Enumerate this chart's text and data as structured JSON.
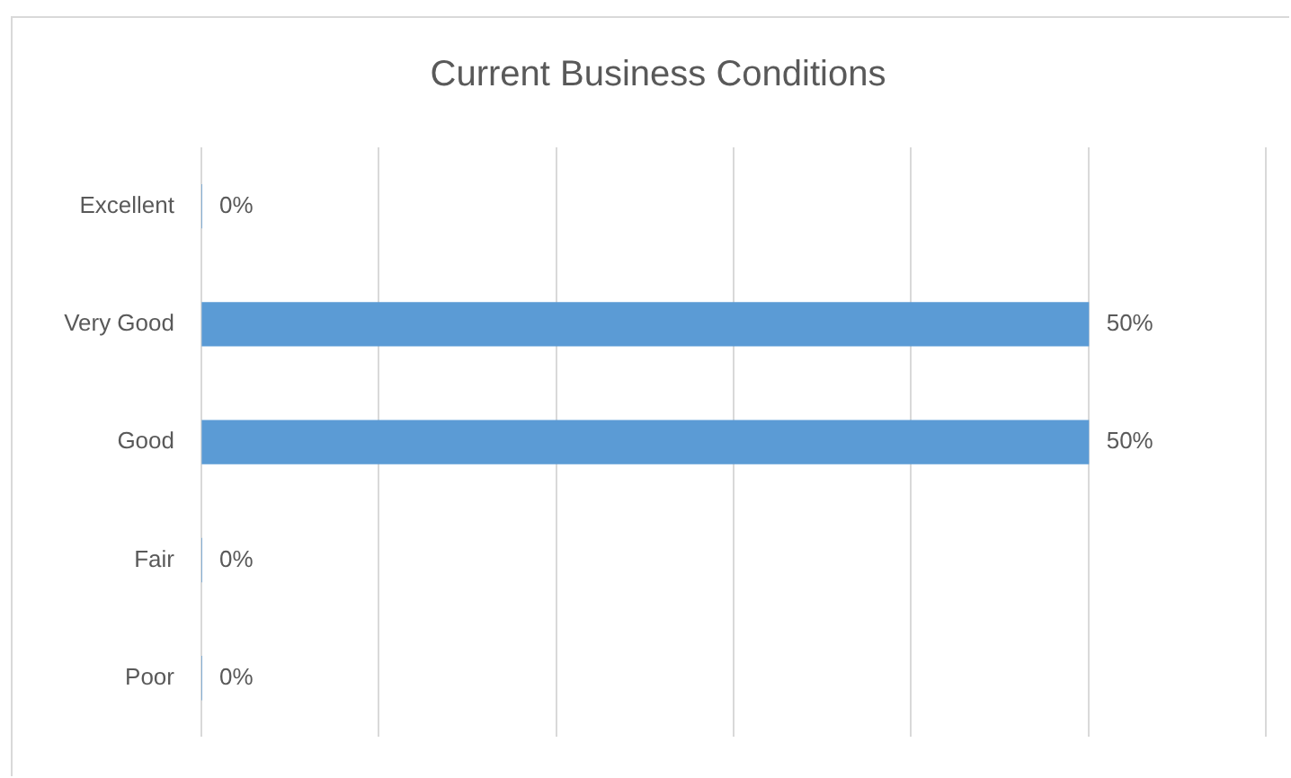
{
  "chart_data": {
    "type": "bar",
    "title": "Current Business Conditions",
    "orientation": "horizontal",
    "categories": [
      "Excellent",
      "Very Good",
      "Good",
      "Fair",
      "Poor"
    ],
    "values": [
      0,
      50,
      50,
      0,
      0
    ],
    "color": "#5b9bd5",
    "value_labels": [
      "0%",
      "50%",
      "50%",
      "0%",
      "0%"
    ],
    "xlim": [
      0,
      60
    ],
    "xticks": [
      {
        "value": 0,
        "label": null
      },
      {
        "value": 10,
        "label": null
      },
      {
        "value": 20,
        "label": null
      },
      {
        "value": 30,
        "label": null
      },
      {
        "value": 40,
        "label": null
      },
      {
        "value": 50,
        "label": null
      },
      {
        "value": 60,
        "label": null
      }
    ],
    "grid": "x",
    "tick_labels": "y"
  }
}
